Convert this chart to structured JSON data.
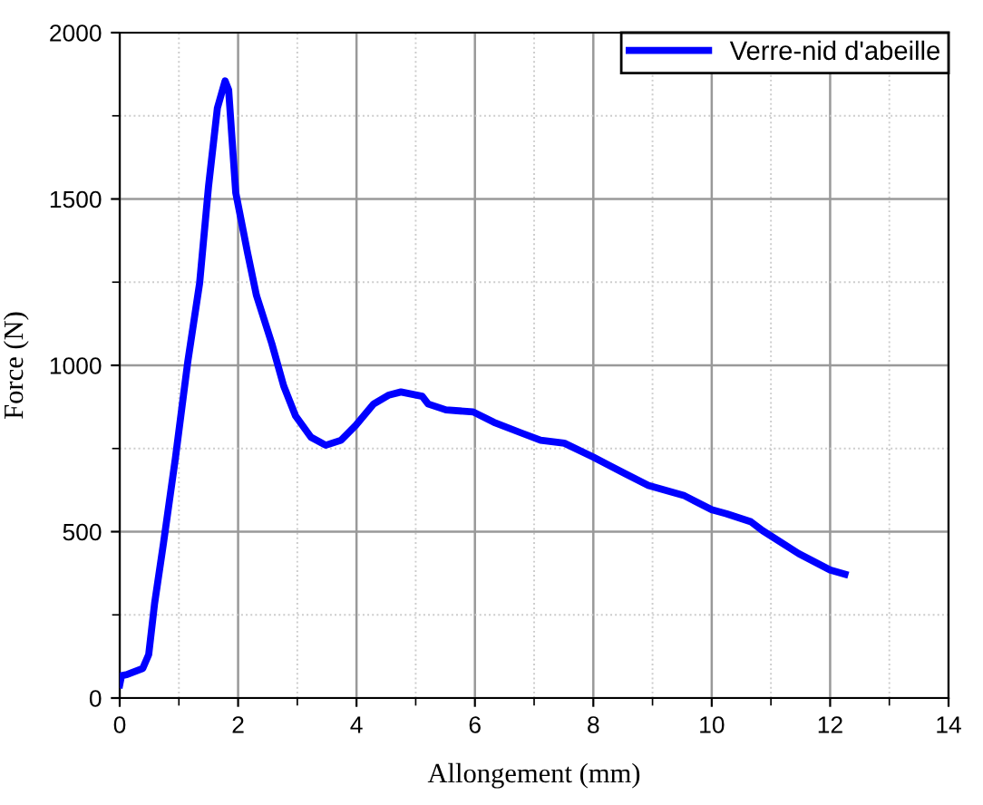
{
  "chart_data": {
    "type": "line",
    "xlabel": "Allongement (mm)",
    "ylabel": "Force (N)",
    "xlim": [
      0,
      14
    ],
    "ylim": [
      0,
      2000
    ],
    "xticks": [
      0,
      2,
      4,
      6,
      8,
      10,
      12,
      14
    ],
    "yticks": [
      0,
      500,
      1000,
      1500,
      2000
    ],
    "grid": true,
    "legend": "top right",
    "marker": "none",
    "line_style": "solid",
    "series": [
      {
        "name": "Verre-nid d'abeille",
        "color": "#0000ff",
        "x": [
          0.0,
          0.03,
          0.13,
          0.39,
          0.49,
          0.59,
          0.74,
          0.94,
          1.15,
          1.35,
          1.5,
          1.65,
          1.78,
          1.84,
          1.96,
          2.16,
          2.31,
          2.57,
          2.77,
          2.97,
          3.23,
          3.48,
          3.74,
          3.99,
          4.29,
          4.55,
          4.75,
          5.11,
          5.21,
          5.51,
          5.97,
          6.32,
          6.78,
          7.11,
          7.51,
          8.0,
          8.53,
          8.93,
          9.54,
          10.0,
          10.25,
          10.66,
          10.86,
          11.47,
          12.0,
          12.25
        ],
        "values": [
          40,
          67,
          71,
          89,
          131,
          285,
          466,
          720,
          1011,
          1247,
          1537,
          1773,
          1855,
          1828,
          1519,
          1338,
          1210,
          1065,
          938,
          848,
          784,
          760,
          775,
          820,
          884,
          911,
          920,
          907,
          884,
          866,
          860,
          829,
          797,
          775,
          766,
          724,
          675,
          639,
          608,
          566,
          554,
          530,
          503,
          434,
          385,
          372
        ]
      }
    ]
  }
}
